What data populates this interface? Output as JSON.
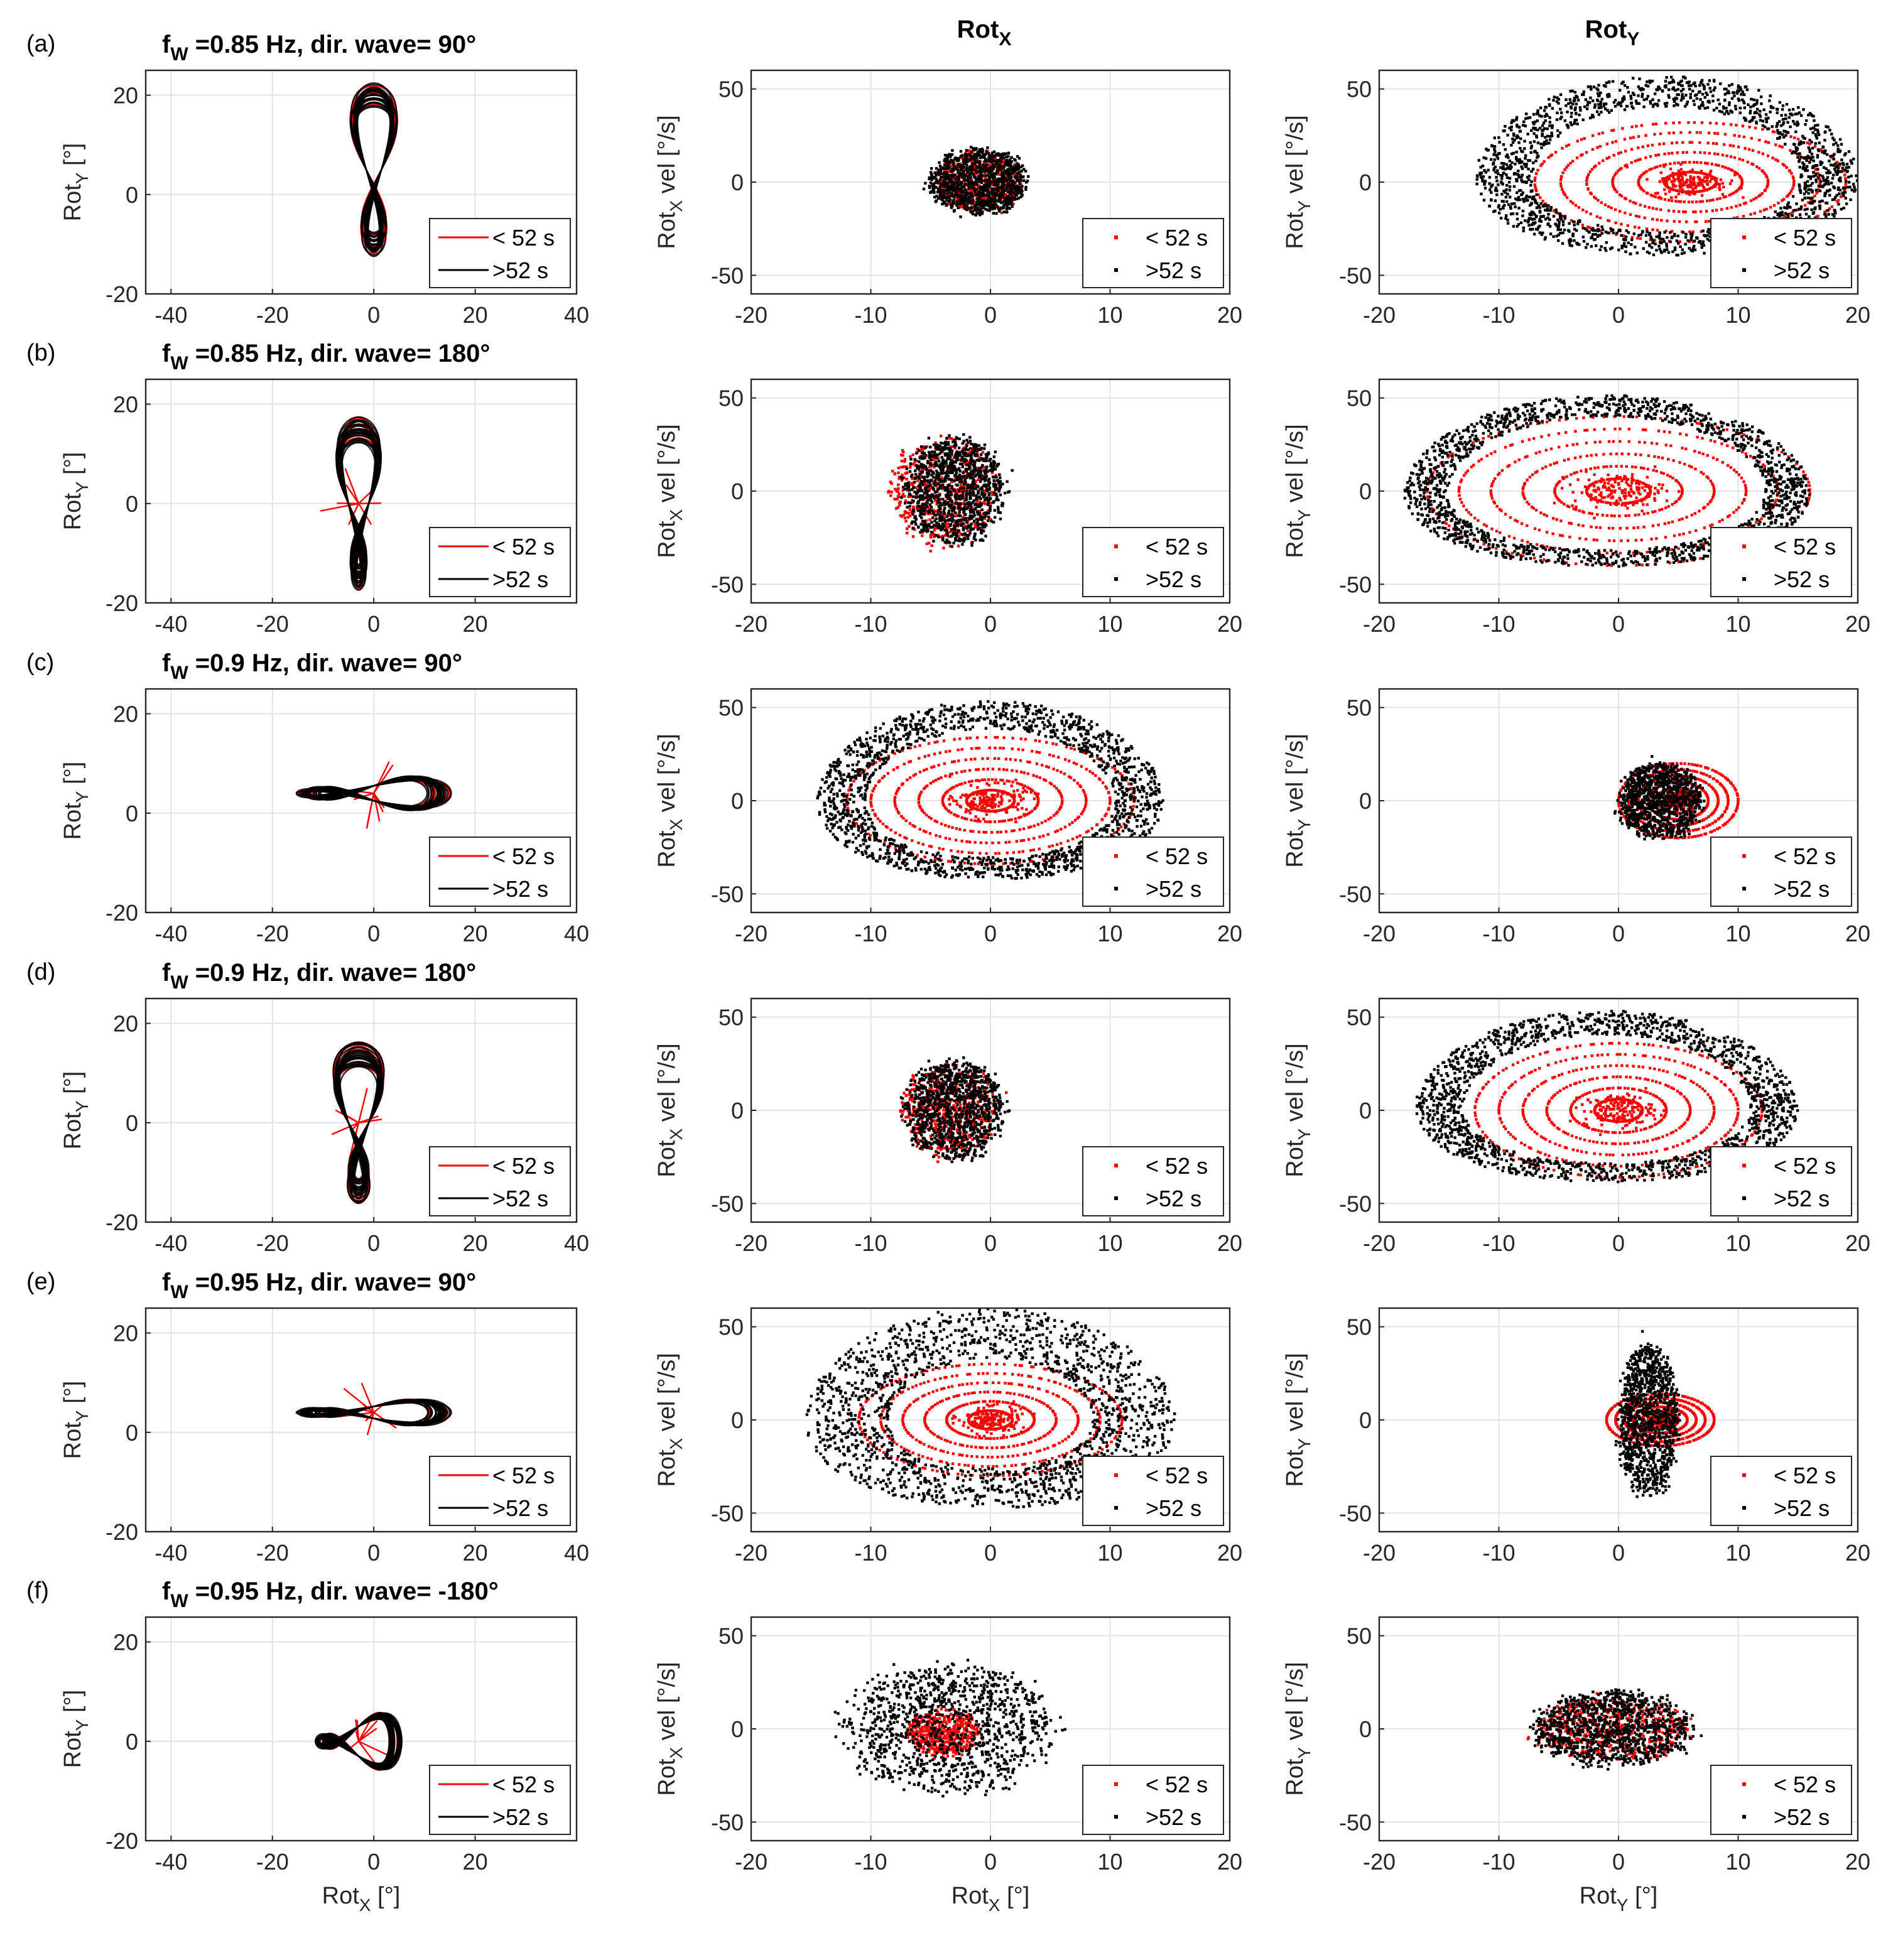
{
  "figure": {
    "column_titles": [
      {
        "main": "Rot",
        "sub": "X"
      },
      {
        "main": "Rot",
        "sub": "Y"
      }
    ],
    "legend_labels": [
      "< 52 s",
      ">52 s"
    ],
    "colors": {
      "early": "#ff0000",
      "late": "#000000",
      "grid": "#e3e3e3",
      "axis": "#262626",
      "legend_border": "#262626"
    },
    "axis_labels": {
      "col1_y": {
        "main": "Rot",
        "sub": "Y",
        "suffix": " [°]"
      },
      "col2_y": {
        "main": "Rot",
        "sub": "X",
        "suffix": " vel  [°/s]"
      },
      "col3_y": {
        "main": "Rot",
        "sub": "Y",
        "suffix": " vel  [°/s]"
      },
      "col1_x": {
        "main": "Rot",
        "sub": "X",
        "suffix": " [°]"
      },
      "col2_x": {
        "main": "Rot",
        "sub": "X",
        "suffix": " [°]"
      },
      "col3_x": {
        "main": "Rot",
        "sub": "Y",
        "suffix": " [°]"
      }
    }
  },
  "chart_data": [
    {
      "type": "line",
      "row": "(a)",
      "title": {
        "main": "f",
        "sub": "W",
        "rest": " =0.85 Hz, dir. wave= 90°"
      },
      "xlim": [
        -45,
        40
      ],
      "ylim": [
        -20,
        25
      ],
      "xticks": [
        -40,
        -20,
        0,
        20,
        40
      ],
      "xtick_labels": [
        "-40",
        "-20",
        "0",
        "20",
        "40"
      ],
      "yticks": [
        -20,
        0,
        20
      ],
      "ytick_labels": [
        "-20",
        "0",
        "20"
      ],
      "series": [
        {
          "name": "< 52 s",
          "center": [
            0,
            5
          ],
          "along": [
            1.5,
            16
          ],
          "across": [
            3,
            0
          ],
          "kind": "figure8",
          "spikes": false
        },
        {
          "name": ">52 s",
          "center": [
            0,
            5
          ],
          "along": [
            1.5,
            16
          ],
          "across": [
            3,
            0
          ],
          "kind": "figure8",
          "spikes": false
        }
      ]
    },
    {
      "type": "scatter",
      "row": "(a)",
      "title": null,
      "xlim": [
        -20,
        20
      ],
      "ylim": [
        -60,
        60
      ],
      "xticks": [
        -20,
        -10,
        0,
        10,
        20
      ],
      "yticks": [
        -50,
        0,
        50
      ],
      "series": [
        {
          "name": "< 52 s",
          "kind": "blob",
          "center": [
            -1,
            0
          ],
          "radius": [
            3.5,
            16
          ]
        },
        {
          "name": ">52 s",
          "kind": "blob",
          "center": [
            -1,
            0
          ],
          "radius": [
            4,
            17
          ]
        }
      ]
    },
    {
      "type": "scatter",
      "row": "(a)",
      "title": null,
      "xlim": [
        -20,
        20
      ],
      "ylim": [
        -60,
        60
      ],
      "xticks": [
        -20,
        -10,
        0,
        10,
        20
      ],
      "yticks": [
        -50,
        0,
        50
      ],
      "series": [
        {
          "name": "< 52 s",
          "kind": "rings",
          "center": [
            6,
            0
          ],
          "radius": [
            13,
            32
          ]
        },
        {
          "name": ">52 s",
          "kind": "ring",
          "center": [
            4,
            3
          ],
          "radius": [
            16,
            48
          ],
          "thickness": 0.3
        }
      ]
    },
    {
      "type": "line",
      "row": "(b)",
      "title": {
        "main": "f",
        "sub": "W",
        "rest": " =0.85 Hz, dir. wave= 180°"
      },
      "xlim": [
        -45,
        40
      ],
      "ylim": [
        -20,
        25
      ],
      "xticks": [
        -40,
        -20,
        0,
        20
      ],
      "xtick_labels": [
        "-40",
        "-20",
        "0",
        "20"
      ],
      "yticks": [
        -20,
        0,
        20
      ],
      "ytick_labels": [
        "-20",
        "0",
        "20"
      ],
      "series": [
        {
          "name": "< 52 s",
          "center": [
            -3,
            0
          ],
          "along": [
            2,
            16
          ],
          "across": [
            2.5,
            0
          ],
          "kind": "figure8",
          "spikes": true
        },
        {
          "name": ">52 s",
          "center": [
            -3,
            0
          ],
          "along": [
            2,
            16
          ],
          "across": [
            2.5,
            0
          ],
          "kind": "figure8",
          "spikes": false
        }
      ]
    },
    {
      "type": "scatter",
      "row": "(b)",
      "title": null,
      "xlim": [
        -20,
        20
      ],
      "ylim": [
        -60,
        60
      ],
      "xticks": [
        -20,
        -10,
        0,
        10,
        20
      ],
      "yticks": [
        -50,
        0,
        50
      ],
      "series": [
        {
          "name": "< 52 s",
          "kind": "blob",
          "center": [
            -4,
            0
          ],
          "radius": [
            4.5,
            28
          ]
        },
        {
          "name": ">52 s",
          "kind": "blob",
          "center": [
            -3,
            0
          ],
          "radius": [
            4,
            28
          ]
        }
      ]
    },
    {
      "type": "scatter",
      "row": "(b)",
      "title": null,
      "xlim": [
        -20,
        20
      ],
      "ylim": [
        -60,
        60
      ],
      "xticks": [
        -20,
        -10,
        0,
        10,
        20
      ],
      "yticks": [
        -50,
        0,
        50
      ],
      "series": [
        {
          "name": "< 52 s",
          "kind": "rings",
          "center": [
            0,
            0
          ],
          "radius": [
            16,
            40
          ]
        },
        {
          "name": ">52 s",
          "kind": "ring",
          "center": [
            -1,
            0
          ],
          "radius": [
            17,
            46
          ],
          "thickness": 0.22
        }
      ]
    },
    {
      "type": "line",
      "row": "(c)",
      "title": {
        "main": "f",
        "sub": "W",
        "rest": " =0.9 Hz, dir. wave= 90°"
      },
      "xlim": [
        -45,
        40
      ],
      "ylim": [
        -20,
        25
      ],
      "xticks": [
        -40,
        -20,
        0,
        20,
        40
      ],
      "xtick_labels": [
        "-40",
        "-20",
        "0",
        "20",
        "40"
      ],
      "yticks": [
        -20,
        0,
        20
      ],
      "ytick_labels": [
        "-20",
        "0",
        "20"
      ],
      "series": [
        {
          "name": "< 52 s",
          "center": [
            0,
            4
          ],
          "along": [
            14,
            1.5
          ],
          "across": [
            0,
            2
          ],
          "kind": "figure8h",
          "spikes": true
        },
        {
          "name": ">52 s",
          "center": [
            0,
            4
          ],
          "along": [
            14,
            1.5
          ],
          "across": [
            0,
            2
          ],
          "kind": "figure8h",
          "spikes": false
        }
      ]
    },
    {
      "type": "scatter",
      "row": "(c)",
      "title": null,
      "xlim": [
        -20,
        20
      ],
      "ylim": [
        -60,
        60
      ],
      "xticks": [
        -20,
        -10,
        0,
        10,
        20
      ],
      "yticks": [
        -50,
        0,
        50
      ],
      "series": [
        {
          "name": "< 52 s",
          "kind": "rings",
          "center": [
            0,
            0
          ],
          "radius": [
            12,
            34
          ]
        },
        {
          "name": ">52 s",
          "kind": "ring",
          "center": [
            0,
            0
          ],
          "radius": [
            14.5,
            48
          ],
          "thickness": 0.28
        }
      ]
    },
    {
      "type": "scatter",
      "row": "(c)",
      "title": null,
      "xlim": [
        -20,
        20
      ],
      "ylim": [
        -60,
        60
      ],
      "xticks": [
        -20,
        -10,
        0,
        10,
        20
      ],
      "yticks": [
        -50,
        0,
        50
      ],
      "series": [
        {
          "name": "< 52 s",
          "kind": "rings",
          "center": [
            5,
            0
          ],
          "radius": [
            5,
            20
          ]
        },
        {
          "name": ">52 s",
          "kind": "blob",
          "center": [
            3.5,
            0
          ],
          "radius": [
            3.5,
            20
          ]
        }
      ]
    },
    {
      "type": "line",
      "row": "(d)",
      "title": {
        "main": "f",
        "sub": "W",
        "rest": " =0.9 Hz, dir. wave= 180°"
      },
      "xlim": [
        -45,
        40
      ],
      "ylim": [
        -20,
        25
      ],
      "xticks": [
        -40,
        -20,
        0,
        20,
        40
      ],
      "xtick_labels": [
        "-40",
        "-20",
        "0",
        "20",
        "40"
      ],
      "yticks": [
        -20,
        0,
        20
      ],
      "ytick_labels": [
        "-20",
        "0",
        "20"
      ],
      "series": [
        {
          "name": "< 52 s",
          "center": [
            -3,
            0
          ],
          "along": [
            2,
            15
          ],
          "across": [
            3,
            0
          ],
          "kind": "figure8",
          "spikes": true
        },
        {
          "name": ">52 s",
          "center": [
            -3,
            0
          ],
          "along": [
            2,
            15
          ],
          "across": [
            3,
            0
          ],
          "kind": "figure8",
          "spikes": false
        }
      ]
    },
    {
      "type": "scatter",
      "row": "(d)",
      "title": null,
      "xlim": [
        -20,
        20
      ],
      "ylim": [
        -60,
        60
      ],
      "xticks": [
        -20,
        -10,
        0,
        10,
        20
      ],
      "yticks": [
        -50,
        0,
        50
      ],
      "series": [
        {
          "name": "< 52 s",
          "kind": "blob",
          "center": [
            -3.5,
            0
          ],
          "radius": [
            4,
            24
          ]
        },
        {
          "name": ">52 s",
          "kind": "blob",
          "center": [
            -3,
            0
          ],
          "radius": [
            4,
            26
          ]
        }
      ]
    },
    {
      "type": "scatter",
      "row": "(d)",
      "title": null,
      "xlim": [
        -20,
        20
      ],
      "ylim": [
        -60,
        60
      ],
      "xticks": [
        -20,
        -10,
        0,
        10,
        20
      ],
      "yticks": [
        -50,
        0,
        50
      ],
      "series": [
        {
          "name": "< 52 s",
          "kind": "rings",
          "center": [
            0,
            0
          ],
          "radius": [
            12,
            36
          ]
        },
        {
          "name": ">52 s",
          "kind": "ring",
          "center": [
            -1,
            2
          ],
          "radius": [
            16,
            46
          ],
          "thickness": 0.25
        }
      ]
    },
    {
      "type": "line",
      "row": "(e)",
      "title": {
        "main": "f",
        "sub": "W",
        "rest": " =0.95 Hz, dir. wave= 90°"
      },
      "xlim": [
        -45,
        40
      ],
      "ylim": [
        -20,
        25
      ],
      "xticks": [
        -40,
        -20,
        0,
        20,
        40
      ],
      "xtick_labels": [
        "-40",
        "-20",
        "0",
        "20",
        "40"
      ],
      "yticks": [
        -20,
        0,
        20
      ],
      "ytick_labels": [
        "-20",
        "0",
        "20"
      ],
      "series": [
        {
          "name": "< 52 s",
          "center": [
            0,
            4
          ],
          "along": [
            14,
            1.2
          ],
          "across": [
            0,
            1.5
          ],
          "kind": "figure8h",
          "spikes": true
        },
        {
          "name": ">52 s",
          "center": [
            0,
            4
          ],
          "along": [
            14,
            1.2
          ],
          "across": [
            0,
            1.5
          ],
          "kind": "figure8h",
          "spikes": false
        }
      ]
    },
    {
      "type": "scatter",
      "row": "(e)",
      "title": null,
      "xlim": [
        -20,
        20
      ],
      "ylim": [
        -60,
        60
      ],
      "xticks": [
        -20,
        -10,
        0,
        10,
        20
      ],
      "yticks": [
        -50,
        0,
        50
      ],
      "series": [
        {
          "name": "< 52 s",
          "kind": "rings",
          "center": [
            0,
            0
          ],
          "radius": [
            11,
            30
          ]
        },
        {
          "name": ">52 s",
          "kind": "ring",
          "center": [
            0,
            0
          ],
          "radius": [
            15.5,
            54
          ],
          "thickness": 0.45
        }
      ]
    },
    {
      "type": "scatter",
      "row": "(e)",
      "title": null,
      "xlim": [
        -20,
        20
      ],
      "ylim": [
        -60,
        60
      ],
      "xticks": [
        -20,
        -10,
        0,
        10,
        20
      ],
      "yticks": [
        -50,
        0,
        50
      ],
      "series": [
        {
          "name": "< 52 s",
          "kind": "rings",
          "center": [
            3.5,
            0
          ],
          "radius": [
            4.5,
            14
          ]
        },
        {
          "name": ">52 s",
          "kind": "blob",
          "center": [
            2.5,
            0
          ],
          "radius": [
            2.5,
            40
          ]
        }
      ]
    },
    {
      "type": "line",
      "row": "(f)",
      "title": {
        "main": "f",
        "sub": "W",
        "rest": " =0.95 Hz, dir. wave= -180°"
      },
      "xlim": [
        -45,
        40
      ],
      "ylim": [
        -20,
        25
      ],
      "xticks": [
        -40,
        -20,
        0,
        20
      ],
      "xtick_labels": [
        "-40",
        "-20",
        "0",
        "20"
      ],
      "yticks": [
        -20,
        0,
        20
      ],
      "ytick_labels": [
        "-20",
        "0",
        "20"
      ],
      "series": [
        {
          "name": "< 52 s",
          "center": [
            -3,
            0
          ],
          "along": [
            8,
            3
          ],
          "across": [
            0,
            3
          ],
          "kind": "figure8h",
          "spikes": true
        },
        {
          "name": ">52 s",
          "center": [
            -3,
            0
          ],
          "along": [
            8,
            3
          ],
          "across": [
            0,
            3
          ],
          "kind": "figure8h",
          "spikes": false
        }
      ]
    },
    {
      "type": "scatter",
      "row": "(f)",
      "title": null,
      "xlim": [
        -20,
        20
      ],
      "ylim": [
        -60,
        60
      ],
      "xticks": [
        -20,
        -10,
        0,
        10,
        20
      ],
      "yticks": [
        -50,
        0,
        50
      ],
      "series": [
        {
          "name": "< 52 s",
          "kind": "blob",
          "center": [
            -4,
            -2
          ],
          "radius": [
            3,
            12
          ]
        },
        {
          "name": ">52 s",
          "kind": "blob",
          "center": [
            -3.5,
            0
          ],
          "radius": [
            8.5,
            34
          ]
        }
      ]
    },
    {
      "type": "scatter",
      "row": "(f)",
      "title": null,
      "xlim": [
        -20,
        20
      ],
      "ylim": [
        -60,
        60
      ],
      "xticks": [
        -20,
        -10,
        0,
        10,
        20
      ],
      "yticks": [
        -50,
        0,
        50
      ],
      "series": [
        {
          "name": "< 52 s",
          "kind": "blob",
          "center": [
            -0.5,
            0
          ],
          "radius": [
            6.5,
            16
          ]
        },
        {
          "name": ">52 s",
          "kind": "blob",
          "center": [
            -0.5,
            0
          ],
          "radius": [
            6.5,
            20
          ]
        }
      ]
    }
  ]
}
